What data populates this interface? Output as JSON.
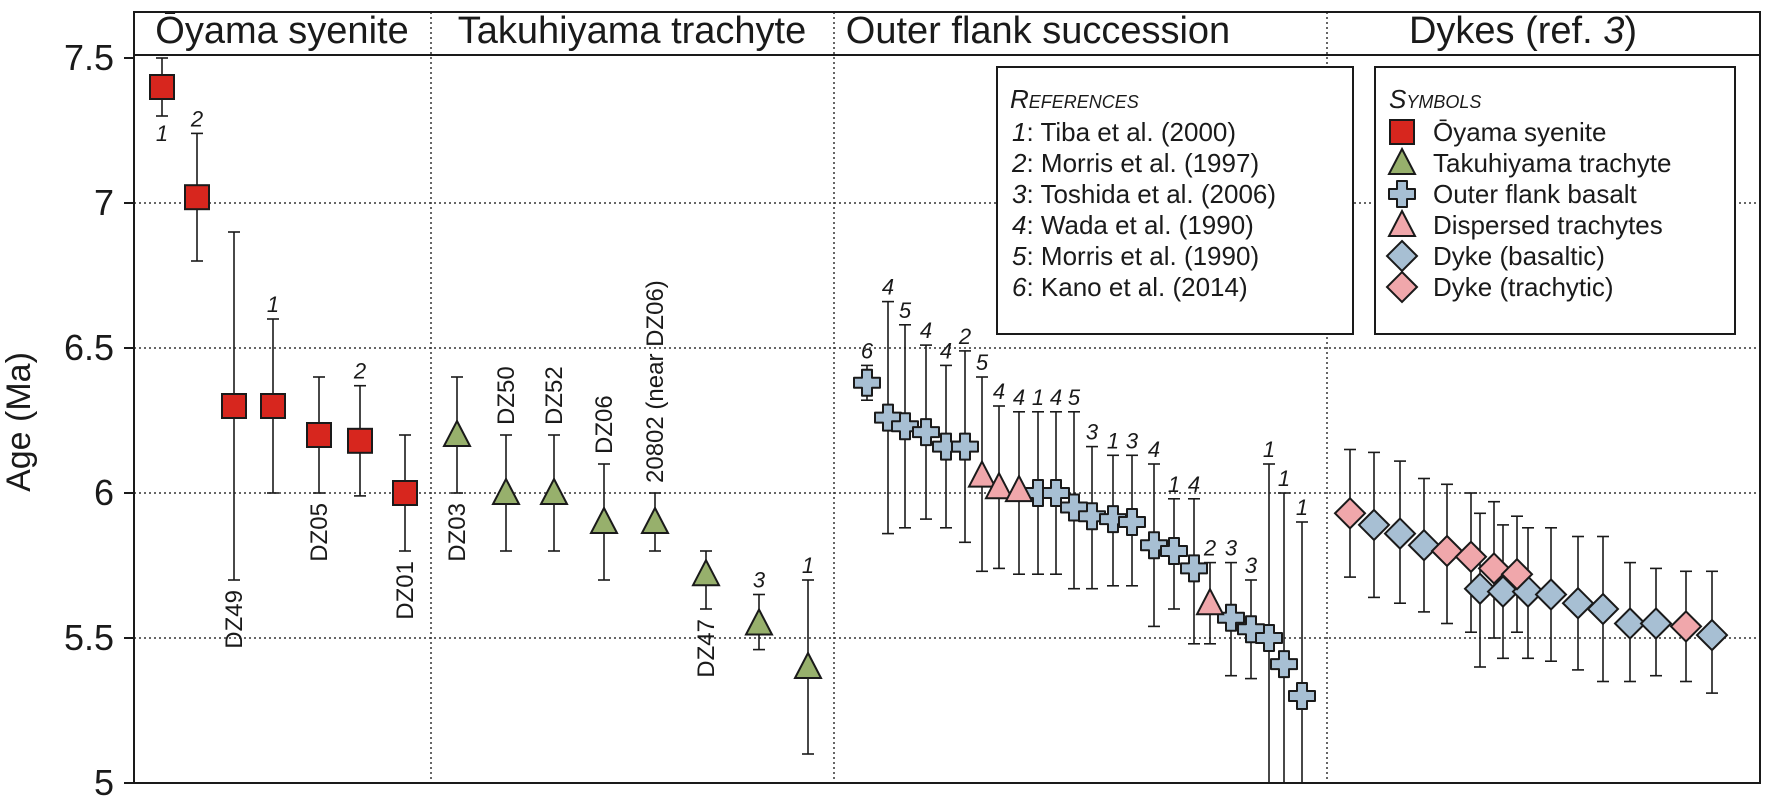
{
  "chart_data": {
    "type": "scatter",
    "ylabel": "Age (Ma)",
    "ylim": [
      5,
      7.65
    ],
    "yticks": [
      "5",
      "5.5",
      "6",
      "6.5",
      "7",
      "7.5"
    ],
    "yticks_values": [
      5,
      5.5,
      6,
      6.5,
      7,
      7.5
    ],
    "grid": "dotted horizontal and vertical panel separators",
    "panels": [
      {
        "title": "Ōyama syenite"
      },
      {
        "title": "Takuhiyama trachyte"
      },
      {
        "title": "Outer flank succession"
      },
      {
        "title_main": "Dykes (ref. ",
        "title_ref": "3",
        "title_close": ")"
      }
    ],
    "series": [
      {
        "name": "Ōyama syenite",
        "marker": "square",
        "color": "#d7261e",
        "points": [
          {
            "age": 7.4,
            "low": 7.3,
            "high": 7.5,
            "ref": "1",
            "ref_pos": "below"
          },
          {
            "age": 7.02,
            "low": 6.8,
            "high": 7.24,
            "ref": "2",
            "ref_pos": "above"
          },
          {
            "age": 6.3,
            "low": 5.7,
            "high": 6.9,
            "sample": "DZ49",
            "sample_pos": "below"
          },
          {
            "age": 6.3,
            "low": 6.0,
            "high": 6.6,
            "ref": "1",
            "ref_pos": "above"
          },
          {
            "age": 6.2,
            "low": 6.0,
            "high": 6.4,
            "sample": "DZ05",
            "sample_pos": "below"
          },
          {
            "age": 6.18,
            "low": 5.99,
            "high": 6.37,
            "ref": "2",
            "ref_pos": "above"
          },
          {
            "age": 6.0,
            "low": 5.8,
            "high": 6.2,
            "sample": "DZ01",
            "sample_pos": "below"
          }
        ]
      },
      {
        "name": "Takuhiyama trachyte",
        "marker": "triangle",
        "color": "#97b06c",
        "points": [
          {
            "age": 6.2,
            "low": 6.0,
            "high": 6.4,
            "sample": "DZ03",
            "sample_pos": "below"
          },
          {
            "age": 6.0,
            "low": 5.8,
            "high": 6.2,
            "sample": "DZ50",
            "sample_pos": "above"
          },
          {
            "age": 6.0,
            "low": 5.8,
            "high": 6.2,
            "sample": "DZ52",
            "sample_pos": "above"
          },
          {
            "age": 5.9,
            "low": 5.7,
            "high": 6.1,
            "sample": "DZ06",
            "sample_pos": "above"
          },
          {
            "age": 5.9,
            "low": 5.8,
            "high": 6.0,
            "sample": "20802 (near DZ06)",
            "sample_pos": "above"
          },
          {
            "age": 5.72,
            "low": 5.6,
            "high": 5.8,
            "sample": "DZ47",
            "sample_pos": "below"
          },
          {
            "age": 5.55,
            "low": 5.46,
            "high": 5.65,
            "ref": "3",
            "ref_pos": "above"
          },
          {
            "age": 5.4,
            "low": 5.1,
            "high": 5.7,
            "ref": "1",
            "ref_pos": "above"
          }
        ]
      },
      {
        "name": "Outer flank basalt",
        "marker": "cross",
        "color": "#a7bfd3",
        "points": [
          {
            "age": 6.38,
            "low": 6.32,
            "high": 6.44,
            "ref": "6",
            "ref_pos": "above"
          },
          {
            "age": 6.26,
            "low": 5.86,
            "high": 6.66,
            "ref": "4",
            "ref_pos": "above"
          },
          {
            "age": 6.23,
            "low": 5.88,
            "high": 6.58,
            "ref": "5",
            "ref_pos": "above"
          },
          {
            "age": 6.21,
            "low": 5.91,
            "high": 6.51,
            "ref": "4",
            "ref_pos": "above"
          },
          {
            "age": 6.16,
            "low": 5.88,
            "high": 6.44,
            "ref": "4",
            "ref_pos": "above"
          },
          {
            "age": 6.16,
            "low": 5.83,
            "high": 6.49,
            "ref": "2",
            "ref_pos": "above"
          },
          {
            "age": 6.0,
            "low": 5.72,
            "high": 6.28,
            "ref": "1",
            "ref_pos": "above"
          },
          {
            "age": 6.0,
            "low": 5.72,
            "high": 6.28,
            "ref": "4",
            "ref_pos": "above"
          },
          {
            "age": 5.95,
            "low": 5.67,
            "high": 6.28,
            "ref": "5",
            "ref_pos": "above"
          },
          {
            "age": 5.92,
            "low": 5.67,
            "high": 6.16,
            "ref": "3",
            "ref_pos": "above"
          },
          {
            "age": 5.91,
            "low": 5.68,
            "high": 6.13,
            "ref": "1",
            "ref_pos": "above"
          },
          {
            "age": 5.9,
            "low": 5.68,
            "high": 6.13,
            "ref": "3",
            "ref_pos": "above"
          },
          {
            "age": 5.82,
            "low": 5.54,
            "high": 6.1,
            "ref": "4",
            "ref_pos": "above"
          },
          {
            "age": 5.8,
            "low": 5.6,
            "high": 5.98,
            "ref": "1",
            "ref_pos": "above"
          },
          {
            "age": 5.74,
            "low": 5.48,
            "high": 5.98,
            "ref": "4",
            "ref_pos": "above"
          },
          {
            "age": 5.57,
            "low": 5.37,
            "high": 5.76,
            "ref": "3",
            "ref_pos": "above"
          },
          {
            "age": 5.53,
            "low": 5.36,
            "high": 5.7,
            "ref": "3",
            "ref_pos": "above"
          },
          {
            "age": 5.5,
            "low": 4.9,
            "high": 6.1,
            "ref": "1",
            "ref_pos": "above"
          },
          {
            "age": 5.41,
            "low": 4.8,
            "high": 6.0,
            "ref": "1",
            "ref_pos": "above"
          },
          {
            "age": 5.3,
            "low": 4.7,
            "high": 5.9,
            "ref": "1",
            "ref_pos": "above"
          }
        ]
      },
      {
        "name": "Dispersed trachytes",
        "marker": "triangle",
        "color": "#f0a7ab",
        "points": [
          {
            "age": 6.06,
            "low": 5.73,
            "high": 6.4,
            "ref": "5",
            "ref_pos": "above"
          },
          {
            "age": 6.02,
            "low": 5.74,
            "high": 6.3,
            "ref": "4",
            "ref_pos": "above"
          },
          {
            "age": 6.01,
            "low": 5.72,
            "high": 6.28,
            "ref": "4",
            "ref_pos": "above"
          },
          {
            "age": 5.62,
            "low": 5.48,
            "high": 5.76,
            "ref": "2",
            "ref_pos": "above"
          }
        ]
      },
      {
        "name": "Dyke (basaltic)",
        "marker": "diamond",
        "color": "#a7bfd3",
        "points": [
          {
            "age": 5.89,
            "low": 5.64,
            "high": 6.14
          },
          {
            "age": 5.86,
            "low": 5.62,
            "high": 6.11
          },
          {
            "age": 5.82,
            "low": 5.59,
            "high": 6.05
          },
          {
            "age": 5.67,
            "low": 5.4,
            "high": 5.93
          },
          {
            "age": 5.66,
            "low": 5.43,
            "high": 5.89
          },
          {
            "age": 5.66,
            "low": 5.43,
            "high": 5.88
          },
          {
            "age": 5.65,
            "low": 5.42,
            "high": 5.88
          },
          {
            "age": 5.62,
            "low": 5.39,
            "high": 5.85
          },
          {
            "age": 5.6,
            "low": 5.35,
            "high": 5.85
          },
          {
            "age": 5.55,
            "low": 5.35,
            "high": 5.76
          },
          {
            "age": 5.55,
            "low": 5.37,
            "high": 5.74
          },
          {
            "age": 5.51,
            "low": 5.31,
            "high": 5.73
          }
        ]
      },
      {
        "name": "Dyke (trachytic)",
        "marker": "diamond",
        "color": "#f0a7ab",
        "points": [
          {
            "age": 5.93,
            "low": 5.71,
            "high": 6.15
          },
          {
            "age": 5.8,
            "low": 5.55,
            "high": 6.03
          },
          {
            "age": 5.78,
            "low": 5.52,
            "high": 6.0
          },
          {
            "age": 5.74,
            "low": 5.5,
            "high": 5.97
          },
          {
            "age": 5.72,
            "low": 5.52,
            "high": 5.92
          },
          {
            "age": 5.54,
            "low": 5.35,
            "high": 5.73
          }
        ]
      }
    ],
    "references_box": {
      "title": "References",
      "entries": [
        {
          "num": "1",
          "text": ": Tiba et al. (2000)"
        },
        {
          "num": "2",
          "text": ": Morris et al. (1997)"
        },
        {
          "num": "3",
          "text": ": Toshida et al. (2006)"
        },
        {
          "num": "4",
          "text": ": Wada et al. (1990)"
        },
        {
          "num": "5",
          "text": ": Morris et al. (1990)"
        },
        {
          "num": "6",
          "text": ": Kano et al. (2014)"
        }
      ]
    },
    "symbols_box": {
      "title": "Symbols",
      "entries": [
        {
          "label": "Ōyama syenite",
          "marker": "square",
          "color": "#d7261e"
        },
        {
          "label": "Takuhiyama trachyte",
          "marker": "triangle",
          "color": "#97b06c"
        },
        {
          "label": "Outer flank basalt",
          "marker": "cross",
          "color": "#a7bfd3"
        },
        {
          "label": "Dispersed trachytes",
          "marker": "triangle",
          "color": "#f0a7ab"
        },
        {
          "label": "Dyke (basaltic)",
          "marker": "diamond",
          "color": "#a7bfd3"
        },
        {
          "label": "Dyke (trachytic)",
          "marker": "diamond",
          "color": "#f0a7ab"
        }
      ]
    }
  }
}
